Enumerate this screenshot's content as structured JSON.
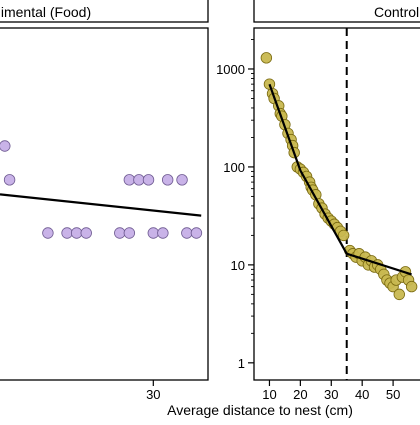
{
  "chart_data": [
    {
      "type": "scatter",
      "panel_title": "imental (Food)",
      "y_scale": "linear",
      "x_ticks": [
        30
      ],
      "xlim": [
        -2,
        41
      ],
      "ylim": [
        0.6,
        4.2
      ],
      "point_color": "#c9b3e8",
      "point_edge_color": "#6e5a91",
      "series": [
        {
          "points": [
            {
              "x": -1,
              "y": 3.0
            },
            {
              "x": 0,
              "y": 2.65
            },
            {
              "x": 25,
              "y": 2.65
            },
            {
              "x": 27,
              "y": 2.65
            },
            {
              "x": 29,
              "y": 2.65
            },
            {
              "x": 33,
              "y": 2.65
            },
            {
              "x": 36,
              "y": 2.65
            },
            {
              "x": 8,
              "y": 2.1
            },
            {
              "x": 12,
              "y": 2.1
            },
            {
              "x": 14,
              "y": 2.1
            },
            {
              "x": 16,
              "y": 2.1
            },
            {
              "x": 23,
              "y": 2.1
            },
            {
              "x": 25,
              "y": 2.1
            },
            {
              "x": 30,
              "y": 2.1
            },
            {
              "x": 32,
              "y": 2.1
            },
            {
              "x": 37,
              "y": 2.1
            },
            {
              "x": 39,
              "y": 2.1
            }
          ]
        }
      ],
      "fit_line": {
        "x": [
          -2,
          40
        ],
        "y": [
          2.5,
          2.28
        ]
      }
    },
    {
      "type": "scatter",
      "panel_title": "Control",
      "y_scale": "log",
      "x_ticks": [
        10,
        20,
        30,
        40,
        50
      ],
      "y_ticks": [
        1,
        10,
        100,
        1000
      ],
      "y_tick_labels": [
        "1",
        "10",
        "100",
        "1000"
      ],
      "xlim": [
        5,
        60
      ],
      "ylim": [
        0.7,
        2500
      ],
      "point_color": "#c8b850",
      "point_edge_color": "#7a6a10",
      "breakpoint_x": 35,
      "series": [
        {
          "points": [
            {
              "x": 9,
              "y": 1300
            },
            {
              "x": 10,
              "y": 700
            },
            {
              "x": 11,
              "y": 560
            },
            {
              "x": 11.5,
              "y": 500
            },
            {
              "x": 13,
              "y": 420
            },
            {
              "x": 13.5,
              "y": 350
            },
            {
              "x": 14,
              "y": 330
            },
            {
              "x": 15,
              "y": 270
            },
            {
              "x": 16,
              "y": 220
            },
            {
              "x": 17,
              "y": 190
            },
            {
              "x": 17.5,
              "y": 165
            },
            {
              "x": 18,
              "y": 140
            },
            {
              "x": 19,
              "y": 100
            },
            {
              "x": 20,
              "y": 95
            },
            {
              "x": 21,
              "y": 88
            },
            {
              "x": 22,
              "y": 80
            },
            {
              "x": 23,
              "y": 70
            },
            {
              "x": 23.5,
              "y": 62
            },
            {
              "x": 24,
              "y": 58
            },
            {
              "x": 25,
              "y": 52
            },
            {
              "x": 26,
              "y": 42
            },
            {
              "x": 27,
              "y": 38
            },
            {
              "x": 28,
              "y": 33
            },
            {
              "x": 29,
              "y": 30
            },
            {
              "x": 30,
              "y": 28
            },
            {
              "x": 31,
              "y": 26
            },
            {
              "x": 32,
              "y": 24
            },
            {
              "x": 33,
              "y": 22
            },
            {
              "x": 34,
              "y": 20
            },
            {
              "x": 36,
              "y": 14
            },
            {
              "x": 37,
              "y": 13
            },
            {
              "x": 38,
              "y": 12
            },
            {
              "x": 39,
              "y": 13
            },
            {
              "x": 40,
              "y": 11
            },
            {
              "x": 41,
              "y": 12
            },
            {
              "x": 42,
              "y": 10
            },
            {
              "x": 43,
              "y": 11
            },
            {
              "x": 44,
              "y": 9.5
            },
            {
              "x": 45,
              "y": 10
            },
            {
              "x": 46,
              "y": 9
            },
            {
              "x": 47,
              "y": 8
            },
            {
              "x": 48,
              "y": 7
            },
            {
              "x": 49,
              "y": 6.5
            },
            {
              "x": 50,
              "y": 6
            },
            {
              "x": 51,
              "y": 7
            },
            {
              "x": 52,
              "y": 5
            },
            {
              "x": 53,
              "y": 7.5
            },
            {
              "x": 54,
              "y": 8.5
            },
            {
              "x": 55,
              "y": 7
            },
            {
              "x": 56,
              "y": 6
            }
          ]
        }
      ],
      "fit_line": {
        "x": [
          10,
          20,
          35,
          56
        ],
        "y": [
          700,
          92,
          13,
          8
        ]
      }
    }
  ],
  "shared": {
    "xlabel": "Average distance to nest (cm)"
  }
}
